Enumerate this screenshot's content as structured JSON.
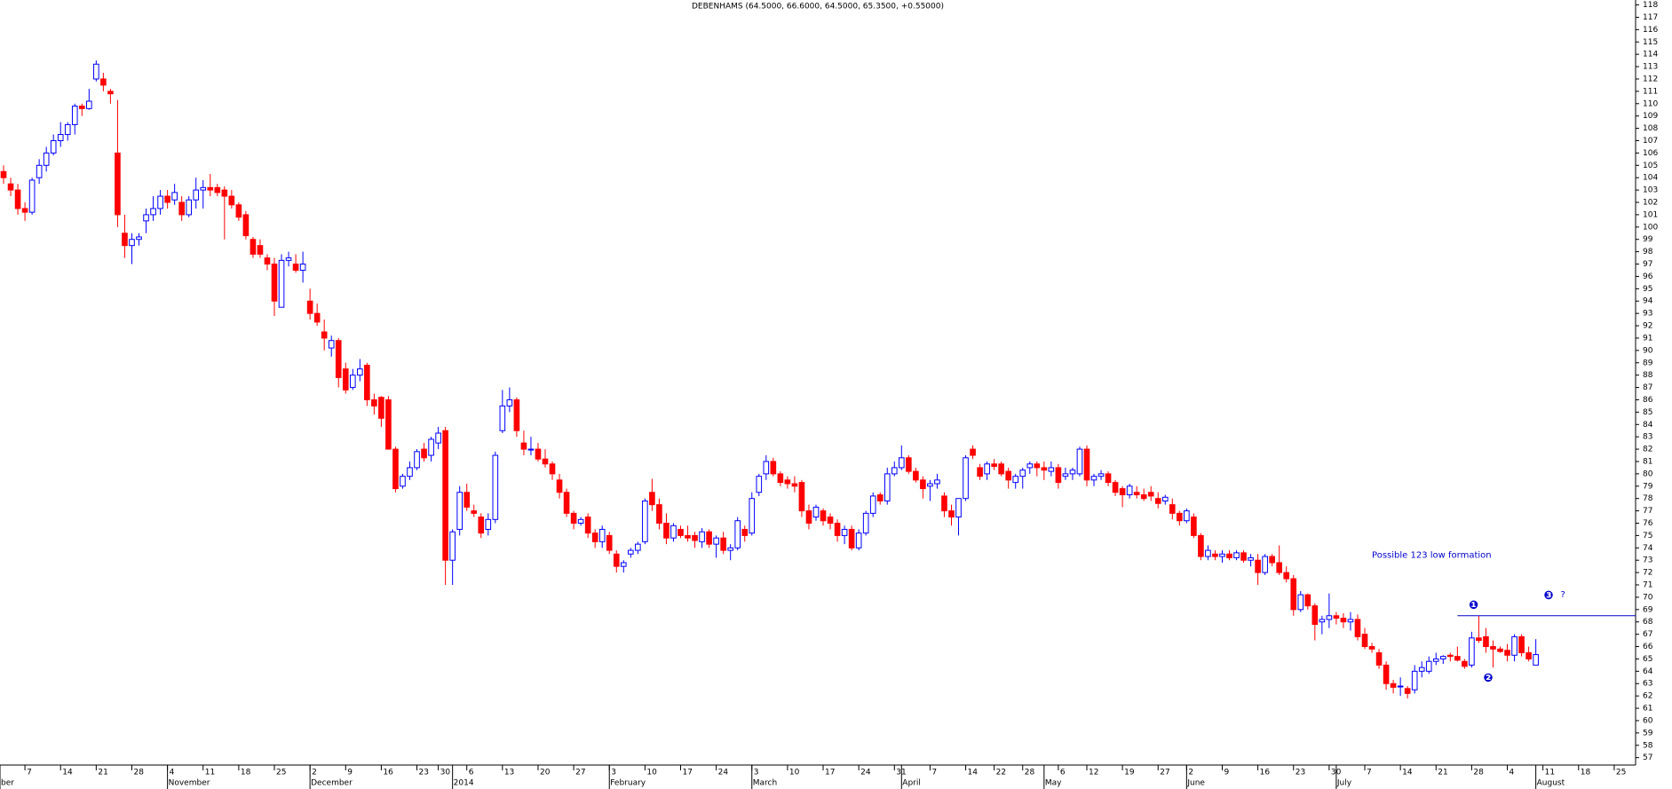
{
  "chart_data": {
    "type": "candlestick",
    "title": "DEBENHAMS (64.5000, 66.6000, 64.5000, 65.3500, +0.55000)",
    "up_color": "#0000ff",
    "down_color": "#ff0000",
    "ylim": [
      56.4,
      118.4
    ],
    "yticks": [
      57,
      58,
      59,
      60,
      61,
      62,
      63,
      64,
      65,
      66,
      67,
      68,
      69,
      70,
      71,
      72,
      73,
      74,
      75,
      76,
      77,
      78,
      79,
      80,
      81,
      82,
      83,
      84,
      85,
      86,
      87,
      88,
      89,
      90,
      91,
      92,
      93,
      94,
      95,
      96,
      97,
      98,
      99,
      100,
      101,
      102,
      103,
      104,
      105,
      106,
      107,
      108,
      109,
      110,
      111,
      112,
      113,
      114,
      115,
      116,
      117,
      118
    ],
    "xlim": [
      -0.5,
      229
    ],
    "xticks": [
      {
        "value": 3,
        "label": "7"
      },
      {
        "value": 8,
        "label": "14"
      },
      {
        "value": 13,
        "label": "21"
      },
      {
        "value": 18,
        "label": "28"
      },
      {
        "value": 23,
        "label": "4"
      },
      {
        "value": 28,
        "label": "11"
      },
      {
        "value": 33,
        "label": "18"
      },
      {
        "value": 38,
        "label": "25"
      },
      {
        "value": 43,
        "label": "2"
      },
      {
        "value": 48,
        "label": "9"
      },
      {
        "value": 53,
        "label": "16"
      },
      {
        "value": 58,
        "label": "23"
      },
      {
        "value": 61,
        "label": "30"
      },
      {
        "value": 65,
        "label": "6"
      },
      {
        "value": 70,
        "label": "13"
      },
      {
        "value": 75,
        "label": "20"
      },
      {
        "value": 80,
        "label": "27"
      },
      {
        "value": 85,
        "label": "3"
      },
      {
        "value": 90,
        "label": "10"
      },
      {
        "value": 95,
        "label": "17"
      },
      {
        "value": 100,
        "label": "24"
      },
      {
        "value": 105,
        "label": "3"
      },
      {
        "value": 110,
        "label": "10"
      },
      {
        "value": 115,
        "label": "17"
      },
      {
        "value": 120,
        "label": "24"
      },
      {
        "value": 125,
        "label": "31"
      },
      {
        "value": 130,
        "label": "7"
      },
      {
        "value": 135,
        "label": "14"
      },
      {
        "value": 139,
        "label": "22"
      },
      {
        "value": 143,
        "label": "28"
      },
      {
        "value": 148,
        "label": "6"
      },
      {
        "value": 152,
        "label": "12"
      },
      {
        "value": 157,
        "label": "19"
      },
      {
        "value": 162,
        "label": "27"
      },
      {
        "value": 166,
        "label": "2"
      },
      {
        "value": 171,
        "label": "9"
      },
      {
        "value": 176,
        "label": "16"
      },
      {
        "value": 181,
        "label": "23"
      },
      {
        "value": 186,
        "label": "30"
      },
      {
        "value": 191,
        "label": "7"
      },
      {
        "value": 196,
        "label": "14"
      },
      {
        "value": 201,
        "label": "21"
      },
      {
        "value": 206,
        "label": "28"
      },
      {
        "value": 211,
        "label": "4"
      },
      {
        "value": 216,
        "label": "11"
      },
      {
        "value": 221,
        "label": "18"
      },
      {
        "value": 226,
        "label": "25"
      }
    ],
    "month_labels": [
      {
        "value": -0.5,
        "label": "ber"
      },
      {
        "value": 23,
        "label": "November"
      },
      {
        "value": 43,
        "label": "December"
      },
      {
        "value": 63,
        "label": "2014"
      },
      {
        "value": 85,
        "label": "February"
      },
      {
        "value": 105,
        "label": "March"
      },
      {
        "value": 126,
        "label": "April"
      },
      {
        "value": 146,
        "label": "May"
      },
      {
        "value": 166,
        "label": "June"
      },
      {
        "value": 187,
        "label": "July"
      },
      {
        "value": 215,
        "label": "August"
      }
    ],
    "resistance": 68.5,
    "annotations": [
      {
        "text": "Possible 123 low formation"
      },
      {
        "text": "❶"
      },
      {
        "text": "❷"
      },
      {
        "text": "❸"
      },
      {
        "text": "?"
      }
    ],
    "ohlc": [
      [
        104.5,
        105,
        103.5,
        104
      ],
      [
        103.5,
        104,
        102.5,
        103
      ],
      [
        103,
        103.5,
        101,
        101.5
      ],
      [
        101.5,
        102,
        100.5,
        101.2
      ],
      [
        101.2,
        104,
        101,
        103.8
      ],
      [
        104,
        105.5,
        103.5,
        105
      ],
      [
        105,
        106.5,
        104.5,
        106
      ],
      [
        106,
        107.5,
        105.8,
        107
      ],
      [
        107,
        108.5,
        106.5,
        107.5
      ],
      [
        107.5,
        108.5,
        107,
        108.3
      ],
      [
        108.3,
        110,
        107.5,
        109.8
      ],
      [
        109.8,
        110,
        109,
        109.6
      ],
      [
        109.6,
        111.2,
        109.5,
        110.2
      ],
      [
        112,
        113.5,
        111.8,
        113.2
      ],
      [
        112,
        112.5,
        111,
        111.5
      ],
      [
        111,
        111.2,
        110,
        110.8
      ],
      [
        106,
        110.3,
        100,
        101
      ],
      [
        99.5,
        101,
        97.5,
        98.5
      ],
      [
        98.5,
        99.5,
        97,
        99
      ],
      [
        99,
        99.5,
        98.5,
        99.2
      ],
      [
        100.5,
        101.5,
        99.5,
        101
      ],
      [
        101,
        102.5,
        100.5,
        101.5
      ],
      [
        101.5,
        103,
        101,
        102.5
      ],
      [
        102.5,
        103,
        101.5,
        102
      ],
      [
        102.2,
        103.5,
        101.8,
        102.8
      ],
      [
        102,
        102.5,
        100.5,
        101
      ],
      [
        101,
        102.5,
        100.8,
        102.2
      ],
      [
        102.2,
        104,
        101.5,
        103
      ],
      [
        103,
        103.8,
        101.5,
        103.2
      ],
      [
        103.2,
        104.3,
        102.5,
        103
      ],
      [
        103.2,
        103.5,
        102.5,
        102.8
      ],
      [
        103,
        103.3,
        99,
        102.5
      ],
      [
        102.5,
        103,
        101.5,
        101.8
      ],
      [
        101.8,
        102,
        100.5,
        100.8
      ],
      [
        101,
        101.3,
        99,
        99.3
      ],
      [
        99,
        99.2,
        97.5,
        97.8
      ],
      [
        98.5,
        99,
        97.5,
        97.8
      ],
      [
        97.5,
        97.8,
        96.5,
        97
      ],
      [
        97,
        97.5,
        92.8,
        94
      ],
      [
        93.5,
        97.8,
        93.5,
        97.3
      ],
      [
        97.3,
        98,
        96.8,
        97.5
      ],
      [
        97,
        97.8,
        96.3,
        96.5
      ],
      [
        96.5,
        98,
        95.5,
        97
      ],
      [
        94,
        95,
        92.5,
        93
      ],
      [
        93,
        93.8,
        92,
        92.3
      ],
      [
        91.5,
        92.5,
        90,
        91
      ],
      [
        90.2,
        91.2,
        89.5,
        90.8
      ],
      [
        90.8,
        91,
        87,
        87.8
      ],
      [
        88.5,
        89,
        86.5,
        86.8
      ],
      [
        87,
        88.5,
        86.8,
        88
      ],
      [
        88,
        89.3,
        87.5,
        88.5
      ],
      [
        88.8,
        89,
        85.5,
        86
      ],
      [
        86,
        86.5,
        84.8,
        85.5
      ],
      [
        86.2,
        86.3,
        83.8,
        84.5
      ],
      [
        86,
        86.3,
        82,
        82
      ],
      [
        82,
        82.2,
        78.5,
        78.8
      ],
      [
        79,
        80,
        78.8,
        79.8
      ],
      [
        79.8,
        81,
        79.5,
        80.5
      ],
      [
        80.5,
        82,
        80.3,
        81.8
      ],
      [
        82,
        82.5,
        81,
        81.3
      ],
      [
        81.5,
        83,
        81,
        82.8
      ],
      [
        82.5,
        83.8,
        82,
        83.3
      ],
      [
        83.5,
        83.8,
        71,
        73
      ],
      [
        73,
        75.5,
        71,
        75.3
      ],
      [
        75.5,
        79,
        75,
        78.5
      ],
      [
        78.5,
        79.2,
        77,
        77.3
      ],
      [
        77,
        77.5,
        76.5,
        76.8
      ],
      [
        76.5,
        76.8,
        74.8,
        75.2
      ],
      [
        75.5,
        76.8,
        75,
        76.3
      ],
      [
        76.3,
        81.8,
        76,
        81.5
      ],
      [
        83.5,
        86.8,
        83.3,
        85.5
      ],
      [
        85.5,
        87,
        85,
        86
      ],
      [
        86,
        86.2,
        83,
        83.5
      ],
      [
        82.5,
        83.5,
        81.5,
        82
      ],
      [
        82,
        83,
        81.5,
        82
      ],
      [
        82,
        82.5,
        81,
        81.2
      ],
      [
        81.2,
        82,
        80.5,
        80.8
      ],
      [
        80.8,
        81,
        79.5,
        80
      ],
      [
        79.5,
        80,
        78,
        78.5
      ],
      [
        78.5,
        78.8,
        76.5,
        76.8
      ],
      [
        76.8,
        77,
        75.5,
        76
      ],
      [
        76,
        76.5,
        75.8,
        76.3
      ],
      [
        76.5,
        76.8,
        74.8,
        75.2
      ],
      [
        75.2,
        75.5,
        74,
        74.5
      ],
      [
        74.5,
        75.8,
        74,
        75.5
      ],
      [
        75,
        75.3,
        73.5,
        73.8
      ],
      [
        73.5,
        73.8,
        72,
        72.5
      ],
      [
        72.5,
        73,
        72,
        72.8
      ],
      [
        73.5,
        74,
        73.2,
        73.8
      ],
      [
        73.8,
        74.5,
        73.5,
        74.3
      ],
      [
        74.5,
        78,
        74.3,
        77.8
      ],
      [
        78.5,
        79.6,
        77,
        77.5
      ],
      [
        77.5,
        78,
        75.5,
        76
      ],
      [
        76,
        76.8,
        74.3,
        74.8
      ],
      [
        74.8,
        76,
        74.5,
        75.8
      ],
      [
        75.5,
        75.8,
        74.8,
        75
      ],
      [
        75,
        75.8,
        74.5,
        74.8
      ],
      [
        75,
        75.3,
        74,
        74.6
      ],
      [
        74.5,
        75.6,
        74,
        75.3
      ],
      [
        75.3,
        75.5,
        74,
        74.3
      ],
      [
        74.3,
        75,
        73.2,
        74.8
      ],
      [
        74.8,
        75.3,
        73.5,
        73.8
      ],
      [
        73.8,
        74.3,
        73,
        74
      ],
      [
        74,
        76.5,
        73.8,
        76.2
      ],
      [
        75.5,
        75.8,
        74.5,
        75
      ],
      [
        75.2,
        78.5,
        75,
        78
      ],
      [
        78.5,
        80,
        78.2,
        79.8
      ],
      [
        80,
        81.5,
        79.5,
        81
      ],
      [
        81,
        81.3,
        79.8,
        80
      ],
      [
        80,
        80.2,
        79,
        79.3
      ],
      [
        79.5,
        79.8,
        78.8,
        79.2
      ],
      [
        79.2,
        79.8,
        78.5,
        79
      ],
      [
        79.3,
        79.5,
        76.5,
        77
      ],
      [
        77,
        77.5,
        75.5,
        76
      ],
      [
        76.5,
        77.5,
        76.2,
        77.3
      ],
      [
        77,
        77.2,
        75.8,
        76.2
      ],
      [
        76.5,
        76.8,
        75.5,
        76
      ],
      [
        76,
        76.3,
        74.5,
        75
      ],
      [
        75,
        75.8,
        74.3,
        75.5
      ],
      [
        75.5,
        75.8,
        73.8,
        74
      ],
      [
        74,
        75.5,
        73.8,
        75.2
      ],
      [
        75.2,
        77,
        75,
        76.8
      ],
      [
        76.8,
        78.5,
        76.5,
        78.2
      ],
      [
        78.3,
        78.5,
        77.5,
        77.8
      ],
      [
        77.8,
        80.5,
        77.5,
        80
      ],
      [
        80,
        81,
        79.8,
        80.5
      ],
      [
        80.5,
        82.3,
        80.3,
        81.3
      ],
      [
        81.3,
        81.5,
        80,
        80.2
      ],
      [
        80.2,
        80.5,
        79.3,
        79.5
      ],
      [
        79.5,
        79.8,
        78,
        78.8
      ],
      [
        79,
        79.5,
        77.8,
        79.2
      ],
      [
        79.2,
        80,
        78.8,
        79.5
      ],
      [
        78.2,
        78.5,
        76.5,
        77
      ],
      [
        77,
        77.5,
        75.8,
        76.5
      ],
      [
        76.5,
        78,
        75,
        78
      ],
      [
        78,
        81.5,
        77.8,
        81.3
      ],
      [
        82,
        82.3,
        81.2,
        81.5
      ],
      [
        80.5,
        80.8,
        79.5,
        79.8
      ],
      [
        80,
        81,
        79.5,
        80.8
      ],
      [
        80.8,
        81.2,
        80.3,
        80.6
      ],
      [
        80.8,
        81,
        79.8,
        80
      ],
      [
        80.2,
        80.5,
        78.8,
        79.5
      ],
      [
        79.3,
        80,
        78.8,
        79.8
      ],
      [
        79.8,
        80.5,
        78.8,
        80.3
      ],
      [
        80.5,
        81,
        80,
        80.8
      ],
      [
        80.8,
        81,
        79.8,
        80.5
      ],
      [
        80.5,
        81,
        79.5,
        80.3
      ],
      [
        80.2,
        81,
        79.8,
        80.5
      ],
      [
        80.5,
        80.8,
        78.8,
        79.3
      ],
      [
        79.8,
        80.5,
        79.5,
        80
      ],
      [
        80,
        80.5,
        79.5,
        80.3
      ],
      [
        80,
        82.2,
        79.8,
        82
      ],
      [
        82,
        82.3,
        79,
        79.5
      ],
      [
        79.5,
        80,
        79,
        79.8
      ],
      [
        79.8,
        80.3,
        79.5,
        80
      ],
      [
        80,
        80.2,
        79,
        79.3
      ],
      [
        79.3,
        79.5,
        78.2,
        78.5
      ],
      [
        78.8,
        79,
        77.3,
        78.3
      ],
      [
        78.3,
        79.2,
        78,
        79
      ],
      [
        78.5,
        79,
        78,
        78.3
      ],
      [
        78.3,
        78.8,
        77.8,
        78
      ],
      [
        78.5,
        79,
        77.8,
        78.2
      ],
      [
        78,
        78.5,
        77.2,
        77.6
      ],
      [
        77.8,
        78.3,
        77.5,
        78.1
      ],
      [
        77.5,
        78,
        76.3,
        76.8
      ],
      [
        76.8,
        77,
        75.8,
        76.2
      ],
      [
        76.2,
        77.2,
        76,
        77
      ],
      [
        76.5,
        76.8,
        74.8,
        75
      ],
      [
        75,
        75.2,
        73,
        73.3
      ],
      [
        73.3,
        74.2,
        73,
        73.8
      ],
      [
        73.5,
        73.8,
        73,
        73.3
      ],
      [
        73.3,
        73.8,
        72.8,
        73.5
      ],
      [
        73.5,
        73.8,
        73,
        73.2
      ],
      [
        73.2,
        73.8,
        73,
        73.6
      ],
      [
        73.6,
        73.8,
        72.8,
        73
      ],
      [
        73,
        73.5,
        72.5,
        73.2
      ],
      [
        73,
        73.5,
        71,
        72
      ],
      [
        72,
        73.5,
        71.8,
        73.3
      ],
      [
        73.3,
        73.5,
        72.5,
        72.8
      ],
      [
        72.8,
        74.2,
        71.8,
        72
      ],
      [
        72,
        72.5,
        71.2,
        71.5
      ],
      [
        71.5,
        71.8,
        68.5,
        69
      ],
      [
        69,
        70.5,
        68.8,
        70.2
      ],
      [
        70.2,
        70.3,
        69,
        69.3
      ],
      [
        69.3,
        69.5,
        66.5,
        67.8
      ],
      [
        68,
        68.5,
        67,
        68.2
      ],
      [
        68.2,
        70.3,
        67.5,
        68.5
      ],
      [
        68.5,
        68.8,
        67.8,
        68.3
      ],
      [
        68.3,
        68.7,
        67.5,
        68
      ],
      [
        68,
        68.8,
        67.3,
        68.2
      ],
      [
        68.2,
        68.6,
        66.5,
        66.8
      ],
      [
        67,
        67.5,
        65.8,
        66
      ],
      [
        66,
        66.3,
        65.5,
        65.8
      ],
      [
        65.5,
        65.8,
        64.2,
        64.5
      ],
      [
        64.5,
        64.8,
        62.5,
        63
      ],
      [
        63,
        63.3,
        62.2,
        62.7
      ],
      [
        62.8,
        63.5,
        62,
        62.8
      ],
      [
        62.6,
        62.8,
        61.8,
        62.2
      ],
      [
        62.5,
        64.5,
        62.2,
        64
      ],
      [
        64,
        64.8,
        63.5,
        64.3
      ],
      [
        64,
        65.2,
        63.8,
        64.8
      ],
      [
        64.8,
        65.5,
        64.5,
        65
      ],
      [
        65,
        65.3,
        64.6,
        65.2
      ],
      [
        65.3,
        65.5,
        64.8,
        65.2
      ],
      [
        65.2,
        66,
        64.8,
        64.9
      ],
      [
        64.8,
        65,
        64.2,
        64.4
      ],
      [
        64.5,
        67.2,
        64.3,
        66.7
      ],
      [
        66.7,
        68.5,
        66.3,
        66.5
      ],
      [
        66.8,
        67.5,
        65.5,
        66
      ],
      [
        66,
        66.5,
        64.3,
        65.8
      ],
      [
        65.8,
        66,
        65.5,
        65.6
      ],
      [
        65.7,
        66.2,
        64.8,
        65.3
      ],
      [
        65.3,
        67,
        64.8,
        66.8
      ],
      [
        66.8,
        67,
        65.2,
        65.5
      ],
      [
        65.5,
        66,
        64.8,
        65
      ],
      [
        64.5,
        66.6,
        64.5,
        65.35
      ]
    ]
  }
}
